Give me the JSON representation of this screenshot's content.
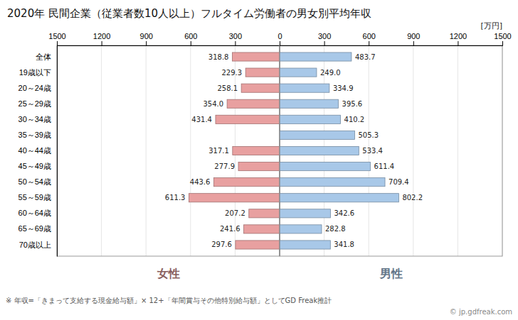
{
  "chart_data": [
    {
      "type": "bar",
      "orientation": "horizontal",
      "title": "2020年 民間企業（従業者数10人以上）フルタイム労働者の男女別平均年収",
      "categories": [
        "全体",
        "19歳以下",
        "20～24歳",
        "25～29歳",
        "30～34歳",
        "35～39歳",
        "40～44歳",
        "45～49歳",
        "50～54歳",
        "55～59歳",
        "60～64歳",
        "65～69歳",
        "70歳以上"
      ],
      "series": [
        {
          "name": "女性",
          "color": "#E8A0A0",
          "values": [
            318.8,
            229.3,
            258.1,
            354.0,
            431.4,
            0.0,
            317.1,
            277.9,
            443.6,
            611.3,
            207.2,
            241.6,
            297.6
          ],
          "value_labels": [
            "318.8",
            "229.3",
            "258.1",
            "354.0",
            "431.4",
            null,
            "317.1",
            "277.9",
            "443.6",
            "611.3",
            "207.2",
            "241.6",
            "297.6"
          ]
        }
      ],
      "xlim": [
        1500,
        0
      ],
      "xticks": [
        1500,
        1200,
        900,
        600,
        300,
        0
      ],
      "grid": true,
      "legend": "bottom",
      "data_labels": true,
      "annotations": [
        "※ 年収=「きまって支給する現金給与額」× 12+「年間賞与その他特別給与額」としてGD Freak推計",
        "© jp.gdfreak.com"
      ]
    },
    {
      "type": "bar",
      "orientation": "horizontal",
      "categories": [
        "全体",
        "19歳以下",
        "20～24歳",
        "25～29歳",
        "30～34歳",
        "35～39歳",
        "40～44歳",
        "45～49歳",
        "50～54歳",
        "55～59歳",
        "60～64歳",
        "65～69歳",
        "70歳以上"
      ],
      "series": [
        {
          "name": "男性",
          "color": "#A8C8E8",
          "values": [
            483.7,
            249.0,
            334.9,
            395.6,
            410.2,
            505.3,
            533.4,
            611.4,
            709.4,
            802.2,
            342.6,
            282.8,
            341.8
          ],
          "value_labels": [
            "483.7",
            "249.0",
            "334.9",
            "395.6",
            "410.2",
            "505.3",
            "533.4",
            "611.4",
            "709.4",
            "802.2",
            "342.6",
            "282.8",
            "341.8"
          ]
        }
      ],
      "xlim": [
        0,
        1500
      ],
      "xticks": [
        300,
        600,
        900,
        1200,
        1500
      ],
      "xlabel": "[万円]",
      "grid": true,
      "legend": "bottom",
      "data_labels": true,
      "tick_labels": "x"
    }
  ]
}
